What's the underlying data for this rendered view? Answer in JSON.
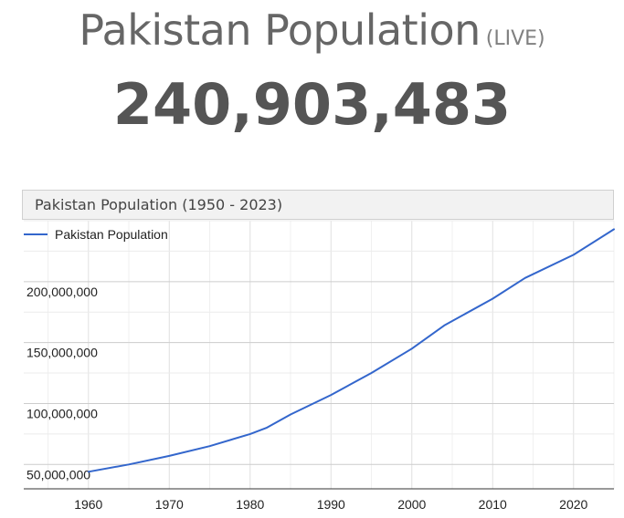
{
  "header": {
    "title": "Pakistan Population",
    "live_label": "(LIVE)",
    "counter": "240,903,483"
  },
  "chart_header": {
    "label": "Pakistan Population (1950 - 2023)"
  },
  "colors": {
    "line": "#3366cc",
    "grid": "#cccccc",
    "header_bg": "#f2f2f2"
  },
  "chart_data": {
    "type": "line",
    "title": "",
    "xlabel": "",
    "ylabel": "",
    "legend_position": "top-left",
    "grid": true,
    "xlim": [
      1952,
      2025
    ],
    "ylim": [
      30000000,
      250000000
    ],
    "x_ticks": [
      1960,
      1970,
      1980,
      1990,
      2000,
      2010,
      2020
    ],
    "y_ticks": [
      50000000,
      100000000,
      150000000,
      200000000
    ],
    "x_tick_labels": [
      "1960",
      "1970",
      "1980",
      "1990",
      "2000",
      "2010",
      "2020"
    ],
    "y_tick_labels": [
      "50,000,000",
      "100,000,000",
      "150,000,000",
      "200,000,000"
    ],
    "series": [
      {
        "name": "Pakistan Population",
        "x": [
          1960,
          1965,
          1970,
          1975,
          1980,
          1982,
          1985,
          1990,
          1995,
          2000,
          2004,
          2010,
          2014,
          2020,
          2025
        ],
        "y": [
          44000000,
          50000000,
          57000000,
          65000000,
          75000000,
          80000000,
          91000000,
          107000000,
          125000000,
          145000000,
          164000000,
          186000000,
          203000000,
          222000000,
          243000000
        ]
      }
    ]
  }
}
